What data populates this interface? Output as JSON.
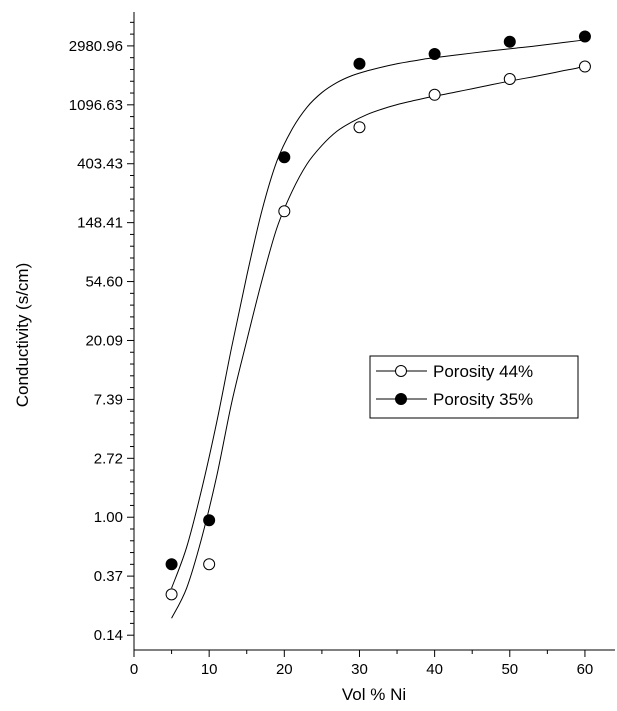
{
  "chart_data": {
    "type": "line",
    "xlabel": "Vol % Ni",
    "ylabel": "Conductivity (s/cm)",
    "xlim": [
      0,
      64
    ],
    "ylim": [
      0.105,
      5300
    ],
    "yscale": "log",
    "x_ticks": [
      0,
      10,
      20,
      30,
      40,
      50,
      60
    ],
    "y_ticks": [
      {
        "value": 0.135,
        "label": "0.14"
      },
      {
        "value": 0.368,
        "label": "0.37"
      },
      {
        "value": 1.0,
        "label": "1.00"
      },
      {
        "value": 2.718,
        "label": "2.72"
      },
      {
        "value": 7.389,
        "label": "7.39"
      },
      {
        "value": 20.09,
        "label": "20.09"
      },
      {
        "value": 54.6,
        "label": "54.60"
      },
      {
        "value": 148.41,
        "label": "148.41"
      },
      {
        "value": 403.43,
        "label": "403.43"
      },
      {
        "value": 1096.63,
        "label": "1096.63"
      },
      {
        "value": 2980.96,
        "label": "2980.96"
      }
    ],
    "legend_position": "center-right",
    "series": [
      {
        "name": "Porosity 44%",
        "marker": "open-circle",
        "x": [
          5,
          10,
          20,
          30,
          40,
          50,
          60
        ],
        "y": [
          0.27,
          0.45,
          180,
          750,
          1300,
          1700,
          2100
        ],
        "fit_x": [
          5,
          7,
          9,
          11,
          13,
          15,
          17,
          19,
          21,
          23,
          25,
          27,
          29,
          31,
          33,
          35,
          37,
          39,
          41,
          43,
          45,
          47,
          49,
          51,
          53,
          55,
          57,
          59,
          60
        ],
        "fit_y": [
          0.18,
          0.3,
          0.7,
          2.0,
          7.0,
          20,
          55,
          135,
          250,
          400,
          550,
          700,
          820,
          930,
          1020,
          1100,
          1170,
          1240,
          1300,
          1370,
          1440,
          1520,
          1600,
          1680,
          1760,
          1850,
          1950,
          2050,
          2150
        ]
      },
      {
        "name": "Porosity 35%",
        "marker": "filled-circle",
        "x": [
          5,
          10,
          20,
          30,
          40,
          50,
          60
        ],
        "y": [
          0.45,
          0.95,
          450,
          2200,
          2600,
          3200,
          3500
        ],
        "fit_x": [
          5,
          7,
          9,
          11,
          13,
          15,
          17,
          19,
          21,
          23,
          25,
          27,
          29,
          31,
          33,
          35,
          37,
          39,
          41,
          43,
          45,
          47,
          49,
          51,
          53,
          55,
          57,
          59,
          60
        ],
        "fit_y": [
          0.3,
          0.6,
          1.6,
          5.0,
          18,
          60,
          180,
          420,
          720,
          1050,
          1350,
          1600,
          1800,
          1950,
          2080,
          2200,
          2300,
          2400,
          2480,
          2560,
          2640,
          2720,
          2800,
          2880,
          2960,
          3050,
          3150,
          3250,
          3300
        ]
      }
    ]
  }
}
